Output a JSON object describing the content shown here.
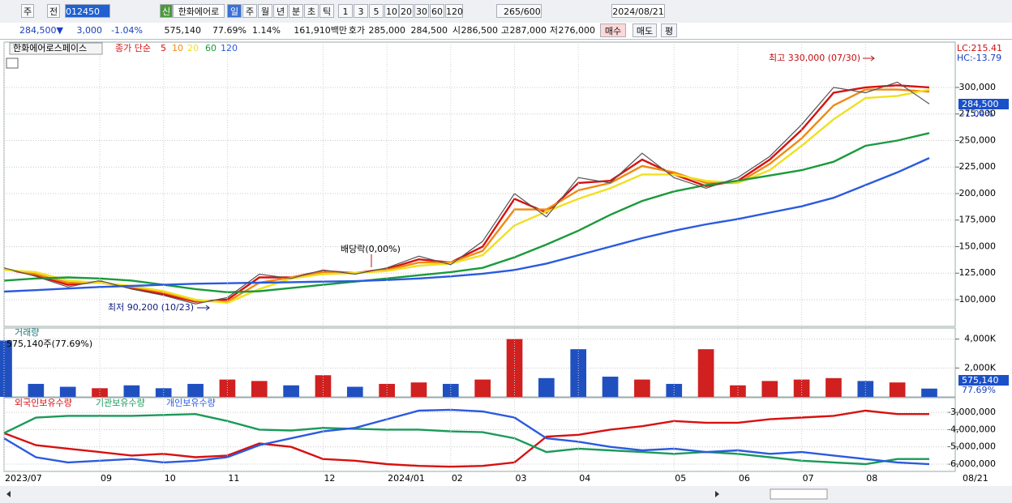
{
  "toolbar": {
    "items": [
      "주",
      "전",
      "012450",
      "신",
      "한화에어로",
      "일",
      "주",
      "월",
      "년",
      "분",
      "초",
      "틱",
      "1",
      "3",
      "5",
      "10",
      "20",
      "30",
      "60",
      "120",
      "265",
      "/600",
      "2024/08/21"
    ]
  },
  "info_bar": {
    "items": [
      "284,500▼",
      "3,000",
      "-1.04%",
      "575,140",
      "77.69%",
      "1.14%",
      "161,910백만",
      "호가",
      "285,000",
      "284,500",
      "시",
      "286,500",
      "고",
      "287,000",
      "저",
      "276,000",
      "매수",
      "매도",
      "평"
    ]
  },
  "chart_data": [
    {
      "type": "line",
      "title": "한화에어로스페이스",
      "subtitle": "종가 단순",
      "categories": [
        "2023/07",
        null,
        null,
        "09",
        null,
        "10",
        null,
        "11",
        null,
        null,
        "12",
        null,
        "2024/01",
        null,
        "02",
        null,
        "03",
        null,
        "04",
        null,
        null,
        "05",
        null,
        "06",
        null,
        "07",
        null,
        "08",
        null,
        null
      ],
      "values": [
        130000,
        122000,
        112000,
        118000,
        110000,
        104000,
        96000,
        102000,
        124000,
        120000,
        128000,
        124000,
        130000,
        141000,
        133000,
        155000,
        200000,
        178000,
        215000,
        210000,
        238000,
        215000,
        205000,
        215000,
        235000,
        265000,
        300000,
        295000,
        305000,
        284500
      ],
      "color": "#555555",
      "series": [
        {
          "name": "5",
          "color": "#d81010",
          "values": [
            129000,
            123000,
            114000,
            117000,
            111000,
            105000,
            98000,
            100000,
            121000,
            121000,
            127000,
            125000,
            129000,
            138000,
            135000,
            150000,
            195000,
            182000,
            210000,
            212000,
            232000,
            218000,
            207000,
            212000,
            232000,
            260000,
            295000,
            300000,
            302000,
            300000
          ]
        },
        {
          "name": "10",
          "color": "#f08a10",
          "values": [
            129000,
            124000,
            116000,
            116000,
            112000,
            107000,
            99000,
            98000,
            116000,
            121000,
            126000,
            125000,
            128000,
            135000,
            135000,
            146000,
            185000,
            185000,
            203000,
            210000,
            226000,
            220000,
            210000,
            210000,
            228000,
            252000,
            283000,
            298000,
            298000,
            296000
          ]
        },
        {
          "name": "20",
          "color": "#f0e020",
          "values": [
            128000,
            126000,
            118000,
            116000,
            113000,
            108000,
            100000,
            97000,
            110000,
            120000,
            124000,
            125000,
            127000,
            132000,
            134000,
            142000,
            170000,
            183000,
            195000,
            205000,
            218000,
            218000,
            212000,
            210000,
            222000,
            245000,
            270000,
            290000,
            292000,
            298000
          ]
        },
        {
          "name": "60",
          "color": "#1a9a3a",
          "values": [
            118000,
            120000,
            121000,
            120000,
            118000,
            114000,
            110000,
            107000,
            108000,
            111000,
            114000,
            117000,
            120000,
            123000,
            126000,
            130000,
            140000,
            152000,
            165000,
            180000,
            193000,
            202000,
            208000,
            212000,
            217000,
            222000,
            230000,
            245000,
            250000,
            257000
          ]
        },
        {
          "name": "120",
          "color": "#2a5ae0",
          "values": [
            107600,
            109000,
            110500,
            112000,
            113000,
            114000,
            115000,
            115500,
            116000,
            116500,
            117000,
            117500,
            118500,
            120000,
            122000,
            124500,
            128000,
            134000,
            142000,
            150000,
            158000,
            165000,
            171000,
            176000,
            182000,
            188000,
            196000,
            208000,
            220000,
            233500
          ]
        }
      ],
      "ylim": [
        74800,
        342700
      ],
      "yticks": [
        {
          "value": 100000,
          "label": "100,000"
        },
        {
          "value": 125000,
          "label": "125,000"
        },
        {
          "value": 150000,
          "label": "150,000"
        },
        {
          "value": 175000,
          "label": "175,000"
        },
        {
          "value": 200000,
          "label": "200,000"
        },
        {
          "value": 225000,
          "label": "225,000"
        },
        {
          "value": 250000,
          "label": "250,000"
        },
        {
          "value": 275000,
          "label": "275,000"
        },
        {
          "value": 300000,
          "label": "300,000"
        }
      ],
      "grid": true,
      "annotations": [
        "최고 330,000 (07/30)",
        "최저 90,200 (10/23)",
        "배당락(0,00%)"
      ],
      "axis_tags": [
        "LC:215.41",
        "HC:-13.79",
        "284,500",
        "-1.04%"
      ]
    },
    {
      "type": "bar",
      "title": "거래량",
      "subtitle": "575,140주(77.69%)",
      "values": [
        3900,
        900,
        700,
        600,
        800,
        600,
        900,
        1200,
        1100,
        800,
        1500,
        700,
        900,
        1000,
        900,
        1200,
        4000,
        1300,
        3300,
        1400,
        1200,
        900,
        3300,
        800,
        1100,
        1200,
        1300,
        1100,
        1000,
        575.14
      ],
      "colors": [
        "#2050c0",
        "#2050c0",
        "#2050c0",
        "#d02020",
        "#2050c0",
        "#2050c0",
        "#2050c0",
        "#d02020",
        "#d02020",
        "#2050c0",
        "#d02020",
        "#2050c0",
        "#d02020",
        "#d02020",
        "#2050c0",
        "#d02020",
        "#d02020",
        "#2050c0",
        "#2050c0",
        "#2050c0",
        "#d02020",
        "#2050c0",
        "#d02020",
        "#d02020",
        "#d02020",
        "#d02020",
        "#d02020",
        "#2050c0",
        "#d02020",
        "#2050c0"
      ],
      "ylim": [
        0,
        4765
      ],
      "yticks": [
        {
          "value": 2000,
          "label": "2,000K"
        },
        {
          "value": 4000,
          "label": "4,000K"
        }
      ],
      "grid": true,
      "axis_tags": [
        "575,140",
        "77.69%"
      ]
    },
    {
      "type": "line",
      "series": [
        {
          "name": "외국인보유수량",
          "color": "#d81010",
          "values": [
            -4200000,
            -4900000,
            -5100000,
            -5300000,
            -5500000,
            -5400000,
            -5600000,
            -5500000,
            -4800000,
            -5000000,
            -5700000,
            -5800000,
            -6000000,
            -6100000,
            -6150000,
            -6100000,
            -5900000,
            -4400000,
            -4300000,
            -4000000,
            -3800000,
            -3500000,
            -3600000,
            -3600000,
            -3400000,
            -3300000,
            -3200000,
            -2900000,
            -3100000,
            -3100000
          ]
        },
        {
          "name": "기관보유수량",
          "color": "#1a9a5a",
          "values": [
            -4200000,
            -3300000,
            -3200000,
            -3200000,
            -3200000,
            -3150000,
            -3100000,
            -3500000,
            -4000000,
            -4050000,
            -3900000,
            -3950000,
            -4000000,
            -4000000,
            -4100000,
            -4150000,
            -4500000,
            -5300000,
            -5100000,
            -5200000,
            -5300000,
            -5400000,
            -5300000,
            -5400000,
            -5600000,
            -5800000,
            -5900000,
            -6000000,
            -5700000,
            -5700000
          ]
        },
        {
          "name": "개인보유수량",
          "color": "#2a5ae0",
          "values": [
            -4500000,
            -5600000,
            -5900000,
            -5800000,
            -5700000,
            -5900000,
            -5800000,
            -5600000,
            -4900000,
            -4500000,
            -4100000,
            -3900000,
            -3400000,
            -2900000,
            -2850000,
            -2950000,
            -3300000,
            -4500000,
            -4700000,
            -5000000,
            -5200000,
            -5100000,
            -5300000,
            -5200000,
            -5400000,
            -5300000,
            -5500000,
            -5700000,
            -5900000,
            -6000000
          ]
        }
      ],
      "ylim": [
        -6420000,
        -2150000
      ],
      "yticks": [
        {
          "value": -6000000,
          "label": "-6,000,000"
        },
        {
          "value": -5000000,
          "label": "-5,000,000"
        },
        {
          "value": -4000000,
          "label": "-4,000,000"
        },
        {
          "value": -3000000,
          "label": "-3,000,000"
        }
      ],
      "grid": true
    }
  ],
  "x_end_label": "08/21"
}
